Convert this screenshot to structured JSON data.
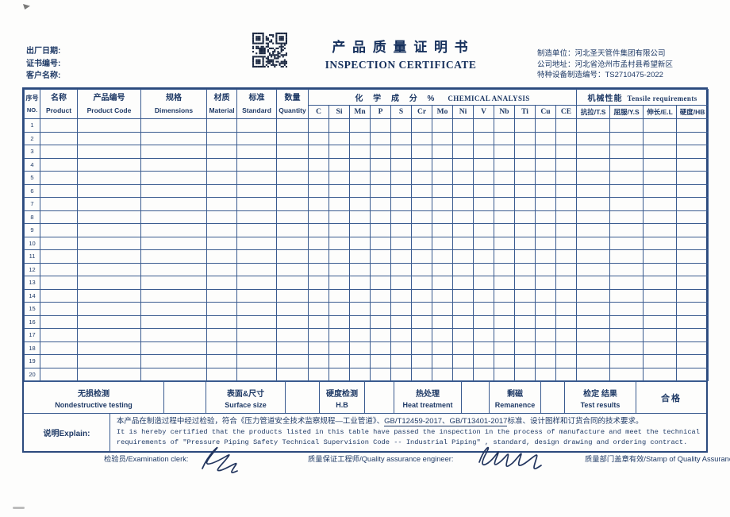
{
  "header": {
    "date_label": "出厂日期:",
    "cert_no_label": "证书编号:",
    "customer_label": "客户名称:",
    "title_cn": "产 品 质 量 证 明 书",
    "title_en": "INSPECTION CERTIFICATE",
    "manufacturer_line": "制造单位：河北圣天管件集团有限公司",
    "address_line": "公司地址：河北省沧州市孟村县希望新区",
    "equipment_no_line": "特种设备制造编号：TS2710475-2022"
  },
  "table": {
    "columns": [
      {
        "cn": "序号",
        "en": "NO."
      },
      {
        "cn": "名称",
        "en": "Product"
      },
      {
        "cn": "产品编号",
        "en": "Product Code"
      },
      {
        "cn": "规格",
        "en": "Dimensions"
      },
      {
        "cn": "材质",
        "en": "Material"
      },
      {
        "cn": "标准",
        "en": "Standard"
      },
      {
        "cn": "数量",
        "en": "Quantity"
      }
    ],
    "chemical_group_cn": "化 学 成 分 %",
    "chemical_group_en": "CHEMICAL ANALYSIS",
    "chemical_columns": [
      "C",
      "Si",
      "Mn",
      "P",
      "S",
      "Cr",
      "Mo",
      "Ni",
      "V",
      "Nb",
      "Ti",
      "Cu",
      "CE"
    ],
    "mechanical_group_cn": "机械性能",
    "mechanical_group_en": "Tensile requirements",
    "mechanical_columns": [
      "抗拉/T.S",
      "屈服/Y.S",
      "伸长/E.L",
      "硬度/HB"
    ],
    "row_numbers": [
      "1",
      "2",
      "3",
      "4",
      "5",
      "6",
      "7",
      "8",
      "9",
      "10",
      "11",
      "12",
      "13",
      "14",
      "15",
      "16",
      "17",
      "18",
      "19",
      "20"
    ],
    "cell_values_note": ""
  },
  "summary": {
    "cells": [
      {
        "cn": "无损检测",
        "en": "Nondestructive testing"
      },
      {
        "cn": "表面&尺寸",
        "en": "Surface size"
      },
      {
        "cn": "硬度检测",
        "en": "H.B"
      },
      {
        "cn": "热处理",
        "en": "Heat treatment"
      },
      {
        "cn": "剩磁",
        "en": "Remanence"
      },
      {
        "cn": "检定 结果",
        "en": "Test results"
      }
    ],
    "result": "合格"
  },
  "explain": {
    "label": "说明Explain:",
    "cn_pre": "本产品在制造过程中经过检验，符合《压力管道安全技术监察规程—工业管道》、",
    "cn_underlined": "GB/T12459-2017、GB/T13401-2017",
    "cn_post": "标准、设计图样和订货合同的技术要求。",
    "en_line1": "It is hereby certified that the products listed in this table have passed the inspection in the process of manufacture and meet the technical",
    "en_line2": "requirements of \"Pressure Piping Safety Technical Supervision Code -- Industrial Piping\" , standard, design drawing and ordering contract."
  },
  "signatures": {
    "examiner_label": "检验员/Examination clerk:",
    "qa_label": "质量保证工程师/Quality assurance engineer:",
    "stamp_label": "质量部门盖章有效/Stamp of Quality Assurance"
  }
}
